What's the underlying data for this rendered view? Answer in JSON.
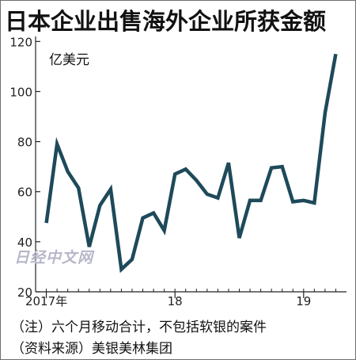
{
  "title": "日本企业出售海外企业所获金额",
  "watermark": "日经中文网",
  "notes": {
    "note1": "（注）六个月移动合计，不包括软银的案件",
    "note2": "（资料来源）美银美林集团"
  },
  "colors": {
    "line": "#1e4a5a",
    "axis": "#222222",
    "watermark": "#b7b7c9"
  },
  "chart_data": {
    "type": "line",
    "ylabel": "亿美元",
    "ylim": [
      20,
      122
    ],
    "yticks": [
      20,
      40,
      60,
      80,
      100,
      120
    ],
    "x_ticks": [
      {
        "label": "2017年",
        "index": 0
      },
      {
        "label": "18",
        "index": 12
      },
      {
        "label": "19",
        "index": 24
      }
    ],
    "x_range": [
      -1,
      28
    ],
    "grid": false,
    "legend": "none",
    "series": [
      {
        "values": [
          47.5,
          79,
          68,
          61.5,
          38,
          54.5,
          61,
          29,
          33,
          49.5,
          51.5,
          44.5,
          67,
          69,
          64.5,
          59,
          57.5,
          71.5,
          41.5,
          56.5,
          56.5,
          69.5,
          70,
          56,
          56.5,
          55.5,
          91.5,
          115
        ]
      }
    ]
  }
}
